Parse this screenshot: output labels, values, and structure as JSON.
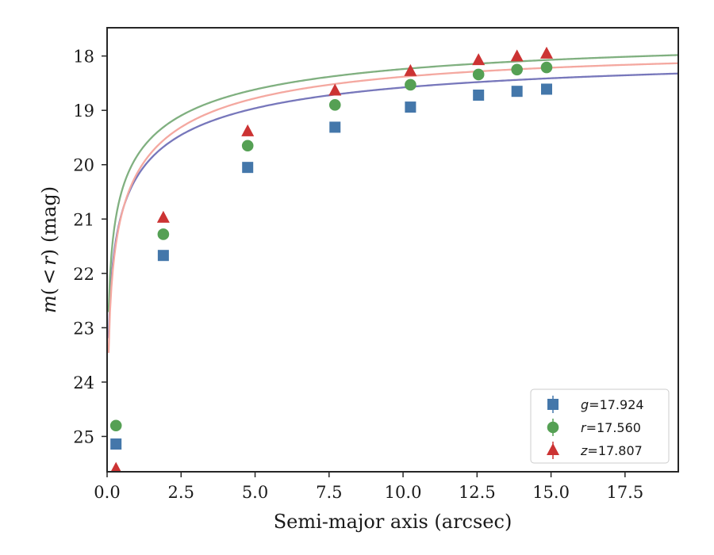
{
  "chart_data": {
    "type": "scatter",
    "title": "",
    "xlabel": "Semi-major axis (arcsec)",
    "ylabel_parts": [
      "m",
      "(",
      "<",
      "r",
      ")",
      "(mag)"
    ],
    "ylabel": "m(<r) (mag)",
    "xlim": [
      0,
      19.3
    ],
    "ylim": [
      25.65,
      17.48
    ],
    "y_inverted": true,
    "x_ticks": [
      0.0,
      2.5,
      5.0,
      7.5,
      10.0,
      12.5,
      15.0,
      17.5
    ],
    "x_tick_labels": [
      "0.0",
      "2.5",
      "5.0",
      "7.5",
      "10.0",
      "12.5",
      "15.0",
      "17.5"
    ],
    "y_ticks": [
      18,
      19,
      20,
      21,
      22,
      23,
      24,
      25
    ],
    "y_tick_labels": [
      "18",
      "19",
      "20",
      "21",
      "22",
      "23",
      "24",
      "25"
    ],
    "legend_position": "bottom-right",
    "series": [
      {
        "name": "g",
        "label_var": "g",
        "label_eq": "=",
        "label_value": "17.924",
        "marker": "square",
        "marker_color": "#4477aa",
        "curve_color": "#7777bb",
        "x": [
          0.3,
          1.9,
          4.75,
          7.7,
          10.25,
          12.55,
          13.85,
          14.85
        ],
        "y": [
          25.14,
          21.67,
          20.05,
          19.31,
          18.94,
          18.72,
          18.65,
          18.61
        ],
        "fit": {
          "m_inf": 17.924,
          "a": 8.2,
          "p": 0.95
        }
      },
      {
        "name": "r",
        "label_var": "r",
        "label_eq": "=",
        "label_value": "17.560",
        "marker": "circle",
        "marker_color": "#55a054",
        "curve_color": "#80b080",
        "x": [
          0.3,
          1.9,
          4.75,
          7.7,
          10.25,
          12.55,
          13.85,
          14.85
        ],
        "y": [
          24.8,
          21.28,
          19.65,
          18.9,
          18.53,
          18.34,
          18.25,
          18.21
        ],
        "fit": {
          "m_inf": 17.56,
          "a": 8.6,
          "p": 0.92
        }
      },
      {
        "name": "z",
        "label_var": "z",
        "label_eq": "=",
        "label_value": "17.807",
        "marker": "triangle",
        "marker_color": "#cc3333",
        "curve_color": "#f4a8a0",
        "x": [
          0.3,
          1.9,
          4.75,
          7.7,
          10.25,
          12.55,
          13.85,
          14.85
        ],
        "y": [
          25.6,
          20.98,
          19.39,
          18.64,
          18.28,
          18.08,
          18.01,
          17.96
        ],
        "fit": {
          "m_inf": 17.807,
          "a": 7.1,
          "p": 1.05
        }
      }
    ]
  }
}
